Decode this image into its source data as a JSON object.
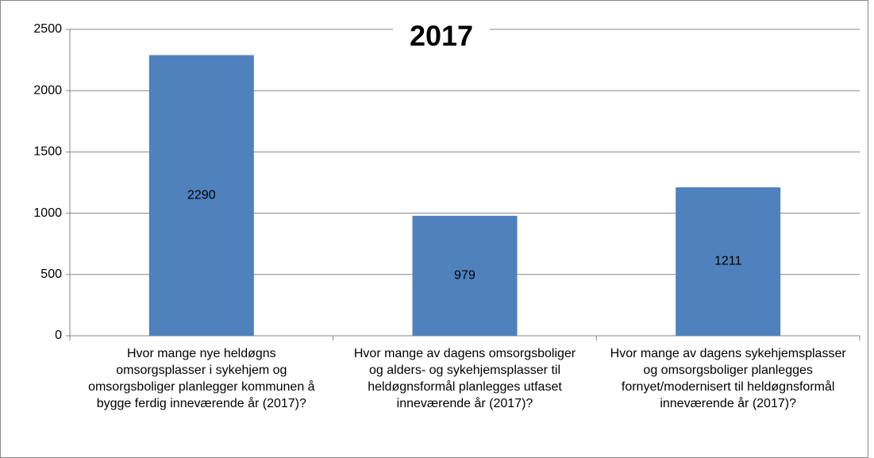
{
  "chart_data": {
    "type": "bar",
    "title": "2017",
    "categories": [
      "Hvor mange nye heldøgns omsorgsplasser i sykehjem og omsorgsboliger planlegger kommunen å bygge ferdig inneværende år (2017)?",
      "Hvor mange av dagens omsorgsboliger og alders- og sykehjemsplasser til heldøgnsformål planlegges utfaset inneværende år (2017)?",
      "Hvor mange av dagens sykehjemsplasser og omsorgsboliger planlegges fornyet/modernisert til heldøgnsformål inneværende år (2017)?"
    ],
    "values": [
      2290,
      979,
      1211
    ],
    "color": "#4f81bd",
    "ylim": [
      0,
      2500
    ],
    "yticks": [
      0,
      500,
      1000,
      1500,
      2000,
      2500
    ],
    "grid": true
  }
}
